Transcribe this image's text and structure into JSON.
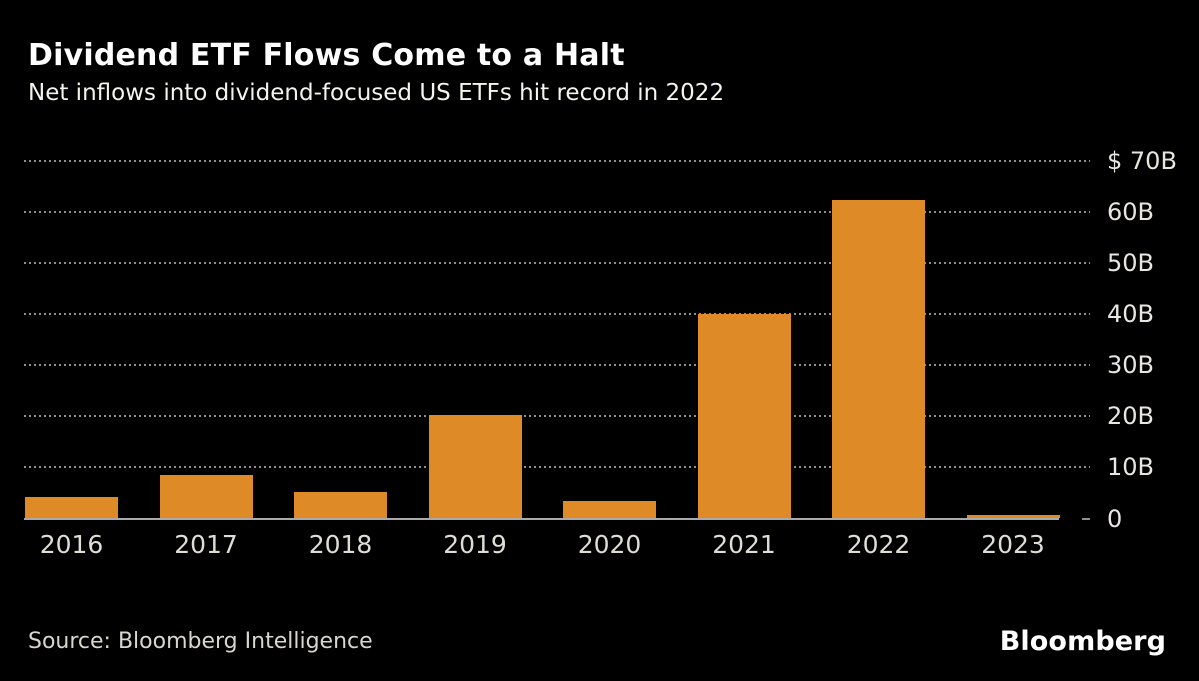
{
  "header": {
    "title": "Dividend ETF Flows Come to a Halt",
    "subtitle": "Net inflows into dividend-focused US ETFs hit record in 2022"
  },
  "footer": {
    "source": "Source: Bloomberg Intelligence",
    "brand": "Bloomberg"
  },
  "colors": {
    "background": "#000000",
    "bar": "#DD8A27",
    "gridline": "#8F8F8F",
    "axis_line": "#A9A9A9",
    "y_tick_label": "#E8E6E0",
    "x_tick_label": "#DFDDD6",
    "title": "#FFFFFF",
    "subtitle": "#F5F3ED",
    "source": "#D8D6CF"
  },
  "chart_data": {
    "type": "bar",
    "title": "Dividend ETF Flows Come to a Halt",
    "subtitle": "Net inflows into dividend-focused US ETFs hit record in 2022",
    "unit": "USD billions",
    "categories": [
      "2016",
      "2017",
      "2018",
      "2019",
      "2020",
      "2021",
      "2022",
      "2023"
    ],
    "values": [
      4.2,
      8.6,
      5.1,
      20.3,
      3.4,
      40.0,
      62.3,
      0.7
    ],
    "ylim": [
      0,
      70
    ],
    "y_ticks": [
      {
        "value": 70,
        "label": "$ 70B"
      },
      {
        "value": 60,
        "label": "60B"
      },
      {
        "value": 50,
        "label": "50B"
      },
      {
        "value": 40,
        "label": "40B"
      },
      {
        "value": 30,
        "label": "30B"
      },
      {
        "value": 20,
        "label": "20B"
      },
      {
        "value": 10,
        "label": "10B"
      },
      {
        "value": 0,
        "label": "0"
      }
    ],
    "grid": "horizontal-dotted",
    "tick_label_side": "right",
    "legend": "none",
    "bar_color": "#DD8A27",
    "source": "Bloomberg Intelligence"
  }
}
